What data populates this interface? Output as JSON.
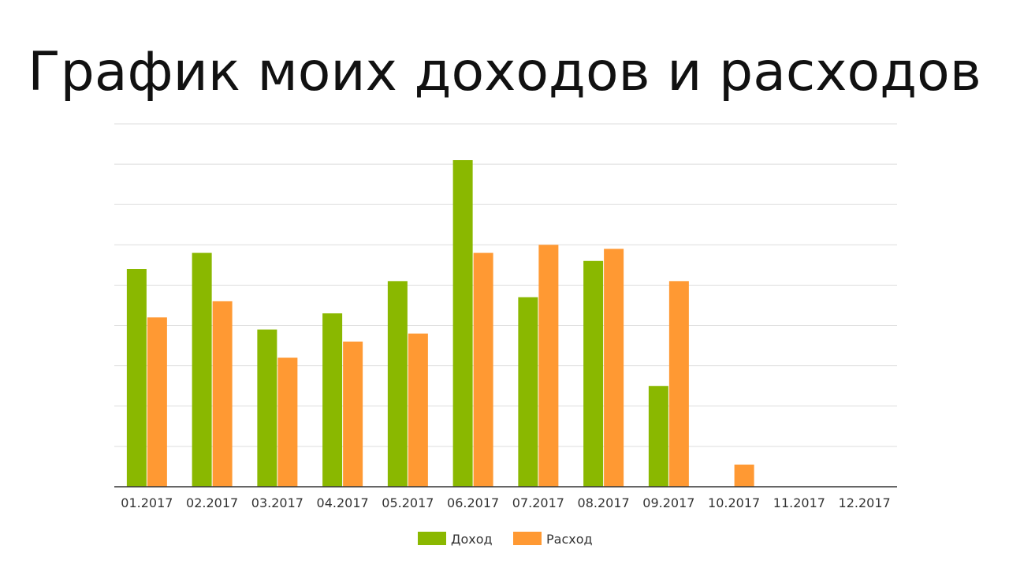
{
  "page": {
    "title": "График моих доходов и расходов"
  },
  "chart_data": {
    "type": "bar",
    "title": "",
    "xlabel": "",
    "ylabel": "",
    "categories": [
      "01.2017",
      "02.2017",
      "03.2017",
      "04.2017",
      "05.2017",
      "06.2017",
      "07.2017",
      "08.2017",
      "09.2017",
      "10.2017",
      "11.2017",
      "12.2017"
    ],
    "series": [
      {
        "name": "Доход",
        "color": "#8ab800",
        "values": [
          5.4,
          5.8,
          3.9,
          4.3,
          5.1,
          8.1,
          4.7,
          5.6,
          2.5,
          0,
          0,
          0
        ]
      },
      {
        "name": "Расход",
        "color": "#ff9933",
        "values": [
          4.2,
          4.6,
          3.2,
          3.6,
          3.8,
          5.8,
          6.0,
          5.9,
          5.1,
          0.55,
          0,
          0
        ]
      }
    ],
    "ylim": [
      0,
      9
    ],
    "y_ticks": [
      0,
      1,
      2,
      3,
      4,
      5,
      6,
      7,
      8,
      9
    ],
    "y_tick_labels_shown": false,
    "grid": true,
    "legend_position": "bottom"
  }
}
